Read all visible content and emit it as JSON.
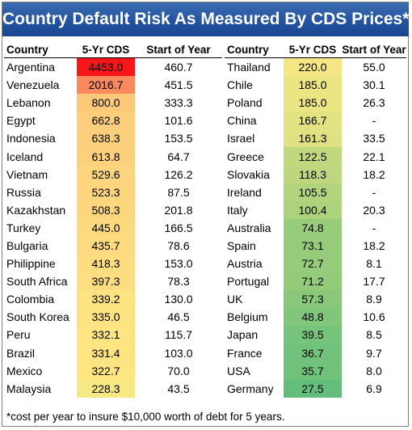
{
  "title": "Country Default Risk As Measured By CDS Prices*",
  "headers": {
    "country": "Country",
    "cds": "5-Yr CDS",
    "soy": "Start of Year"
  },
  "footnote": "*cost per year to insure $10,000 worth of debt for 5 years.",
  "chart_data": {
    "type": "table",
    "columns": [
      "Country",
      "5-Yr CDS",
      "Start of Year"
    ],
    "left_rows": [
      [
        "Argentina",
        "4453.0",
        "460.7"
      ],
      [
        "Venezuela",
        "2016.7",
        "451.5"
      ],
      [
        "Lebanon",
        "800.0",
        "333.3"
      ],
      [
        "Egypt",
        "662.8",
        "101.6"
      ],
      [
        "Indonesia",
        "638.3",
        "153.5"
      ],
      [
        "Iceland",
        "613.8",
        "64.7"
      ],
      [
        "Vietnam",
        "529.6",
        "126.2"
      ],
      [
        "Russia",
        "523.3",
        "87.5"
      ],
      [
        "Kazakhstan",
        "508.3",
        "201.8"
      ],
      [
        "Turkey",
        "445.0",
        "166.5"
      ],
      [
        "Bulgaria",
        "435.7",
        "78.6"
      ],
      [
        "Philippine",
        "418.3",
        "153.0"
      ],
      [
        "South Africa",
        "397.3",
        "78.3"
      ],
      [
        "Colombia",
        "339.2",
        "130.0"
      ],
      [
        "South Korea",
        "335.0",
        "46.5"
      ],
      [
        "Peru",
        "332.1",
        "115.7"
      ],
      [
        "Brazil",
        "331.4",
        "103.0"
      ],
      [
        "Mexico",
        "322.7",
        "70.0"
      ],
      [
        "Malaysia",
        "228.3",
        "43.5"
      ]
    ],
    "right_rows": [
      [
        "Thailand",
        "220.0",
        "55.0"
      ],
      [
        "Chile",
        "185.0",
        "30.1"
      ],
      [
        "Poland",
        "185.0",
        "26.3"
      ],
      [
        "China",
        "166.7",
        "-"
      ],
      [
        "Israel",
        "161.3",
        "33.5"
      ],
      [
        "Greece",
        "122.5",
        "22.1"
      ],
      [
        "Slovakia",
        "118.3",
        "18.2"
      ],
      [
        "Ireland",
        "105.5",
        "-"
      ],
      [
        "Italy",
        "100.4",
        "20.3"
      ],
      [
        "Australia",
        "74.8",
        "-"
      ],
      [
        "Spain",
        "73.1",
        "18.2"
      ],
      [
        "Austria",
        "72.7",
        "8.1"
      ],
      [
        "Portugal",
        "71.2",
        "17.7"
      ],
      [
        "UK",
        "57.3",
        "8.9"
      ],
      [
        "Belgium",
        "48.8",
        "10.6"
      ],
      [
        "Japan",
        "39.5",
        "8.5"
      ],
      [
        "France",
        "36.7",
        "9.7"
      ],
      [
        "USA",
        "35.7",
        "8.0"
      ],
      [
        "Germany",
        "27.5",
        "6.9"
      ]
    ]
  }
}
